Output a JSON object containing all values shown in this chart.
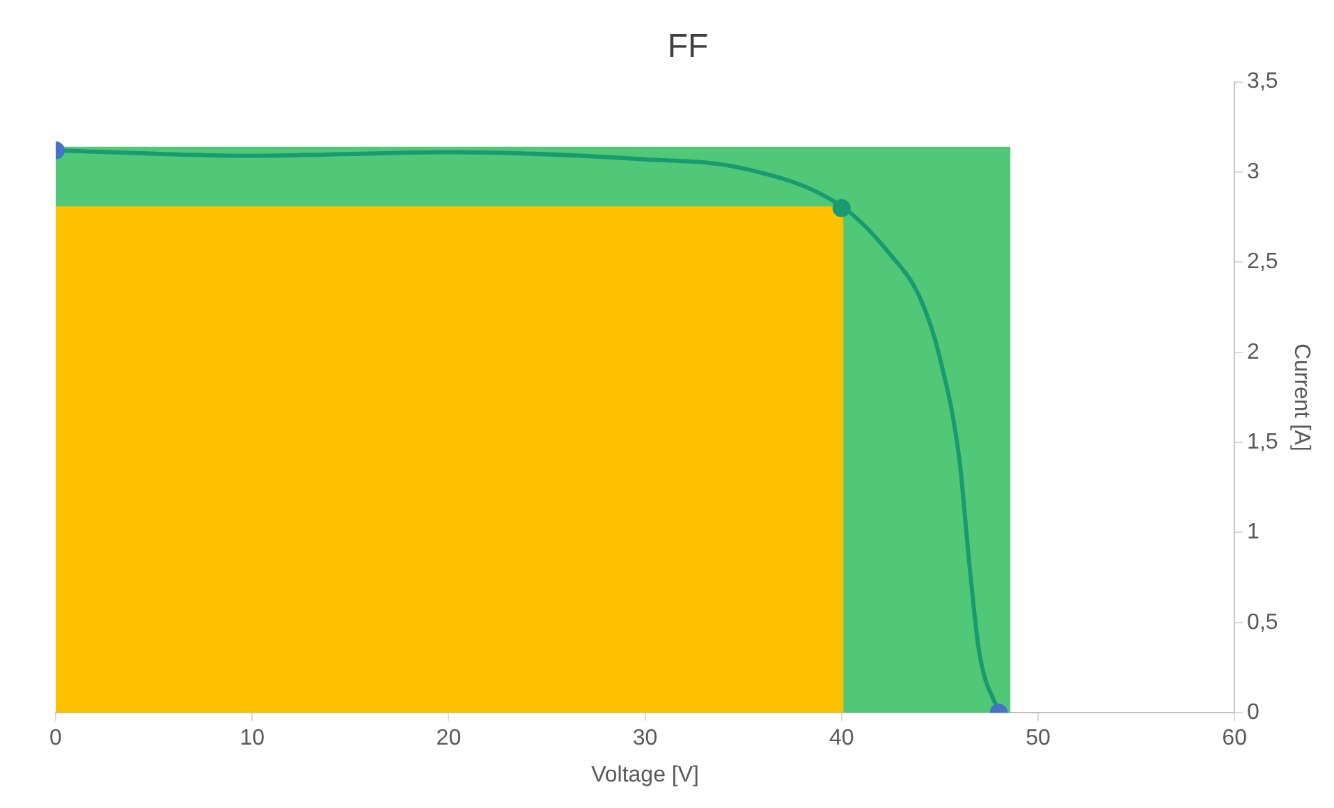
{
  "chart_data": {
    "type": "line",
    "title": "FF",
    "xlabel": "Voltage [V]",
    "ylabel": "Current [A]",
    "xlim": [
      0,
      60
    ],
    "xticks": [
      0,
      10,
      20,
      30,
      40,
      50,
      60
    ],
    "ylim": [
      0,
      3.5
    ],
    "yticks": [
      0,
      {
        "value": 0.5,
        "label": "0,5"
      },
      1,
      {
        "value": 1.5,
        "label": "1,5"
      },
      2,
      {
        "value": 2.5,
        "label": "2,5"
      },
      3,
      {
        "value": 3.5,
        "label": "3,5"
      }
    ],
    "grid": false,
    "legend": false,
    "series": [
      {
        "type": "area",
        "color": "#50c878",
        "x": [
          0,
          48.6
        ],
        "values": [
          3.14,
          3.14
        ]
      },
      {
        "type": "area",
        "color": "#ffc000",
        "x": [
          0,
          40.1
        ],
        "values": [
          2.81,
          2.81
        ]
      },
      {
        "type": "line",
        "color": "#1a9a70",
        "marker": "none",
        "x": [
          0,
          10,
          20,
          30,
          35,
          40,
          42.5,
          44,
          45,
          46,
          46.5,
          47,
          48
        ],
        "values": [
          3.12,
          3.09,
          3.11,
          3.07,
          3.02,
          2.81,
          2.54,
          2.3,
          1.97,
          1.4,
          0.83,
          0.34,
          0
        ]
      },
      {
        "type": "scatter",
        "marker": "circle",
        "colors": [
          "#4472c4",
          "#1a9a70",
          "#4472c4"
        ],
        "x": [
          0,
          40,
          48
        ],
        "values": [
          3.12,
          2.8,
          0
        ]
      }
    ]
  }
}
